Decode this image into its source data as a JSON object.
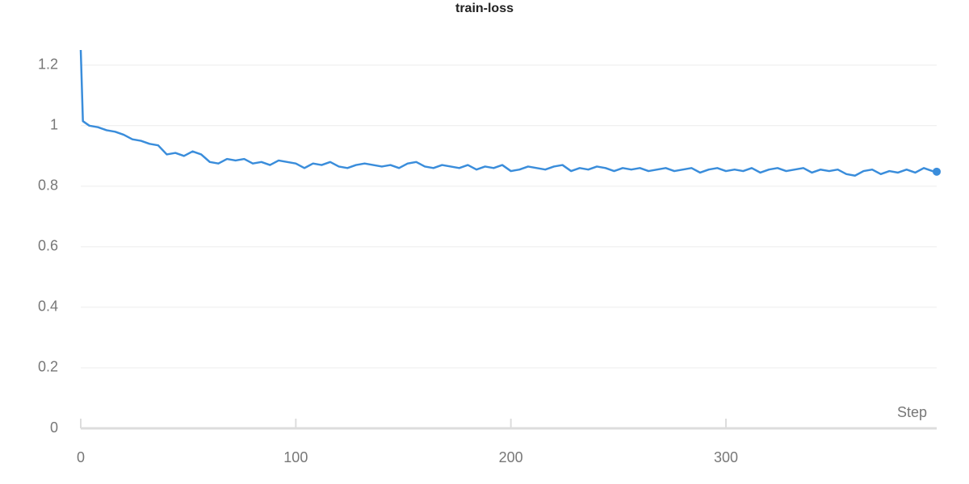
{
  "chart_data": {
    "type": "line",
    "title": "train-loss",
    "x_label": "Step",
    "x": [
      0,
      1,
      4,
      8,
      12,
      16,
      20,
      24,
      28,
      32,
      36,
      40,
      44,
      48,
      52,
      56,
      60,
      64,
      68,
      72,
      76,
      80,
      84,
      88,
      92,
      96,
      100,
      104,
      108,
      112,
      116,
      120,
      124,
      128,
      132,
      136,
      140,
      144,
      148,
      152,
      156,
      160,
      164,
      168,
      172,
      176,
      180,
      184,
      188,
      192,
      196,
      200,
      204,
      208,
      212,
      216,
      220,
      224,
      228,
      232,
      236,
      240,
      244,
      248,
      252,
      256,
      260,
      264,
      268,
      272,
      276,
      280,
      284,
      288,
      292,
      296,
      300,
      304,
      308,
      312,
      316,
      320,
      324,
      328,
      332,
      336,
      340,
      344,
      348,
      352,
      356,
      360,
      364,
      368,
      372,
      376,
      380,
      384,
      388,
      392,
      396,
      398
    ],
    "series": [
      {
        "name": "train-loss",
        "color": "#3a8ddb",
        "values": [
          1.25,
          1.015,
          1.0,
          0.995,
          0.985,
          0.98,
          0.97,
          0.955,
          0.95,
          0.94,
          0.935,
          0.905,
          0.91,
          0.9,
          0.915,
          0.905,
          0.88,
          0.875,
          0.89,
          0.885,
          0.89,
          0.875,
          0.88,
          0.87,
          0.885,
          0.88,
          0.875,
          0.86,
          0.875,
          0.87,
          0.88,
          0.865,
          0.86,
          0.87,
          0.875,
          0.87,
          0.865,
          0.87,
          0.86,
          0.875,
          0.88,
          0.865,
          0.86,
          0.87,
          0.865,
          0.86,
          0.87,
          0.855,
          0.865,
          0.86,
          0.87,
          0.85,
          0.855,
          0.865,
          0.86,
          0.855,
          0.865,
          0.87,
          0.85,
          0.86,
          0.855,
          0.865,
          0.86,
          0.85,
          0.86,
          0.855,
          0.86,
          0.85,
          0.855,
          0.86,
          0.85,
          0.855,
          0.86,
          0.845,
          0.855,
          0.86,
          0.85,
          0.855,
          0.85,
          0.86,
          0.845,
          0.855,
          0.86,
          0.85,
          0.855,
          0.86,
          0.845,
          0.855,
          0.85,
          0.855,
          0.84,
          0.835,
          0.85,
          0.855,
          0.84,
          0.85,
          0.845,
          0.855,
          0.845,
          0.86,
          0.85,
          0.848
        ]
      }
    ],
    "xlim": [
      0,
      398
    ],
    "xticks": [
      0,
      100,
      200,
      300
    ],
    "ylim": [
      0,
      1.25
    ],
    "yticks": [
      0,
      0.2,
      0.4,
      0.6,
      0.8,
      1,
      1.2
    ],
    "grid": true
  }
}
